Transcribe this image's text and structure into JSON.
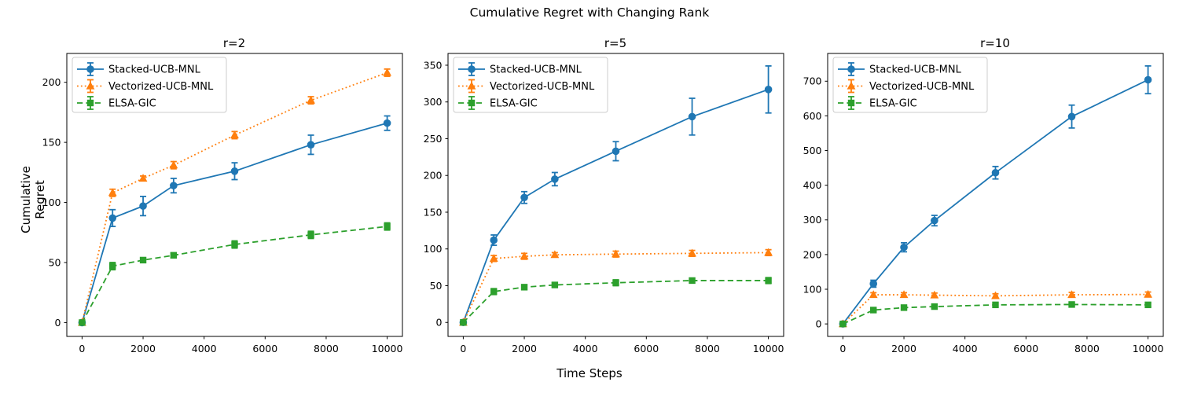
{
  "figure": {
    "title": "Cumulative Regret with Changing Rank",
    "xlabel": "Time Steps",
    "ylabel": "Cumulative Regret",
    "background_color": "#ffffff",
    "axes_edge_color": "#000000",
    "legend_border_color": "#cccccc"
  },
  "chart_data": [
    {
      "type": "line",
      "title": "r=2",
      "x": [
        0,
        1000,
        2000,
        3000,
        5000,
        7500,
        10000
      ],
      "series": [
        {
          "name": "Stacked-UCB-MNL",
          "color": "#1f77b4",
          "marker": "circle",
          "linestyle": "solid",
          "values": [
            0,
            87,
            97,
            114,
            126,
            148,
            166
          ],
          "errors": [
            0,
            7,
            8,
            6,
            7,
            8,
            6
          ]
        },
        {
          "name": "Vectorized-UCB-MNL",
          "color": "#ff7f0e",
          "marker": "triangle",
          "linestyle": "dotted",
          "values": [
            0,
            108,
            120,
            131,
            156,
            185,
            208
          ],
          "errors": [
            0,
            3,
            2,
            3,
            3,
            3,
            3
          ]
        },
        {
          "name": "ELSA-GIC",
          "color": "#2ca02c",
          "marker": "square",
          "linestyle": "dashed",
          "values": [
            0,
            47,
            52,
            56,
            65,
            73,
            80
          ],
          "errors": [
            0,
            3,
            2,
            2,
            3,
            3,
            3
          ]
        }
      ],
      "xlim": [
        -500,
        10500
      ],
      "ylim": [
        -11.5,
        224
      ],
      "xticks": [
        0,
        2000,
        4000,
        6000,
        8000,
        10000
      ],
      "yticks": [
        0,
        50,
        100,
        150,
        200
      ],
      "grid": false,
      "legend_position": "upper left"
    },
    {
      "type": "line",
      "title": "r=5",
      "x": [
        0,
        1000,
        2000,
        3000,
        5000,
        7500,
        10000
      ],
      "series": [
        {
          "name": "Stacked-UCB-MNL",
          "color": "#1f77b4",
          "marker": "circle",
          "linestyle": "solid",
          "values": [
            0,
            112,
            170,
            195,
            233,
            280,
            317
          ],
          "errors": [
            0,
            7,
            8,
            9,
            13,
            25,
            32
          ]
        },
        {
          "name": "Vectorized-UCB-MNL",
          "color": "#ff7f0e",
          "marker": "triangle",
          "linestyle": "dotted",
          "values": [
            0,
            87,
            90,
            92,
            93,
            94,
            95
          ],
          "errors": [
            0,
            4,
            4,
            3,
            4,
            4,
            4
          ]
        },
        {
          "name": "ELSA-GIC",
          "color": "#2ca02c",
          "marker": "square",
          "linestyle": "dashed",
          "values": [
            0,
            42,
            48,
            51,
            54,
            57,
            57
          ],
          "errors": [
            0,
            4,
            3,
            3,
            4,
            3,
            4
          ]
        }
      ],
      "xlim": [
        -500,
        10500
      ],
      "ylim": [
        -19,
        366
      ],
      "xticks": [
        0,
        2000,
        4000,
        6000,
        8000,
        10000
      ],
      "yticks": [
        0,
        50,
        100,
        150,
        200,
        250,
        300,
        350
      ],
      "grid": false,
      "legend_position": "upper left"
    },
    {
      "type": "line",
      "title": "r=10",
      "x": [
        0,
        1000,
        2000,
        3000,
        5000,
        7500,
        10000
      ],
      "series": [
        {
          "name": "Stacked-UCB-MNL",
          "color": "#1f77b4",
          "marker": "circle",
          "linestyle": "solid",
          "values": [
            0,
            116,
            221,
            298,
            436,
            598,
            704
          ],
          "errors": [
            0,
            10,
            13,
            15,
            18,
            33,
            40
          ]
        },
        {
          "name": "Vectorized-UCB-MNL",
          "color": "#ff7f0e",
          "marker": "triangle",
          "linestyle": "dotted",
          "values": [
            0,
            84,
            84,
            83,
            81,
            84,
            85
          ],
          "errors": [
            0,
            6,
            6,
            6,
            6,
            7,
            7
          ]
        },
        {
          "name": "ELSA-GIC",
          "color": "#2ca02c",
          "marker": "square",
          "linestyle": "dashed",
          "values": [
            0,
            40,
            47,
            50,
            55,
            56,
            55
          ],
          "errors": [
            0,
            4,
            4,
            4,
            5,
            5,
            5
          ]
        }
      ],
      "xlim": [
        -500,
        10500
      ],
      "ylim": [
        -36,
        780
      ],
      "xticks": [
        0,
        2000,
        4000,
        6000,
        8000,
        10000
      ],
      "yticks": [
        0,
        100,
        200,
        300,
        400,
        500,
        600,
        700
      ],
      "grid": false,
      "legend_position": "upper left"
    }
  ]
}
